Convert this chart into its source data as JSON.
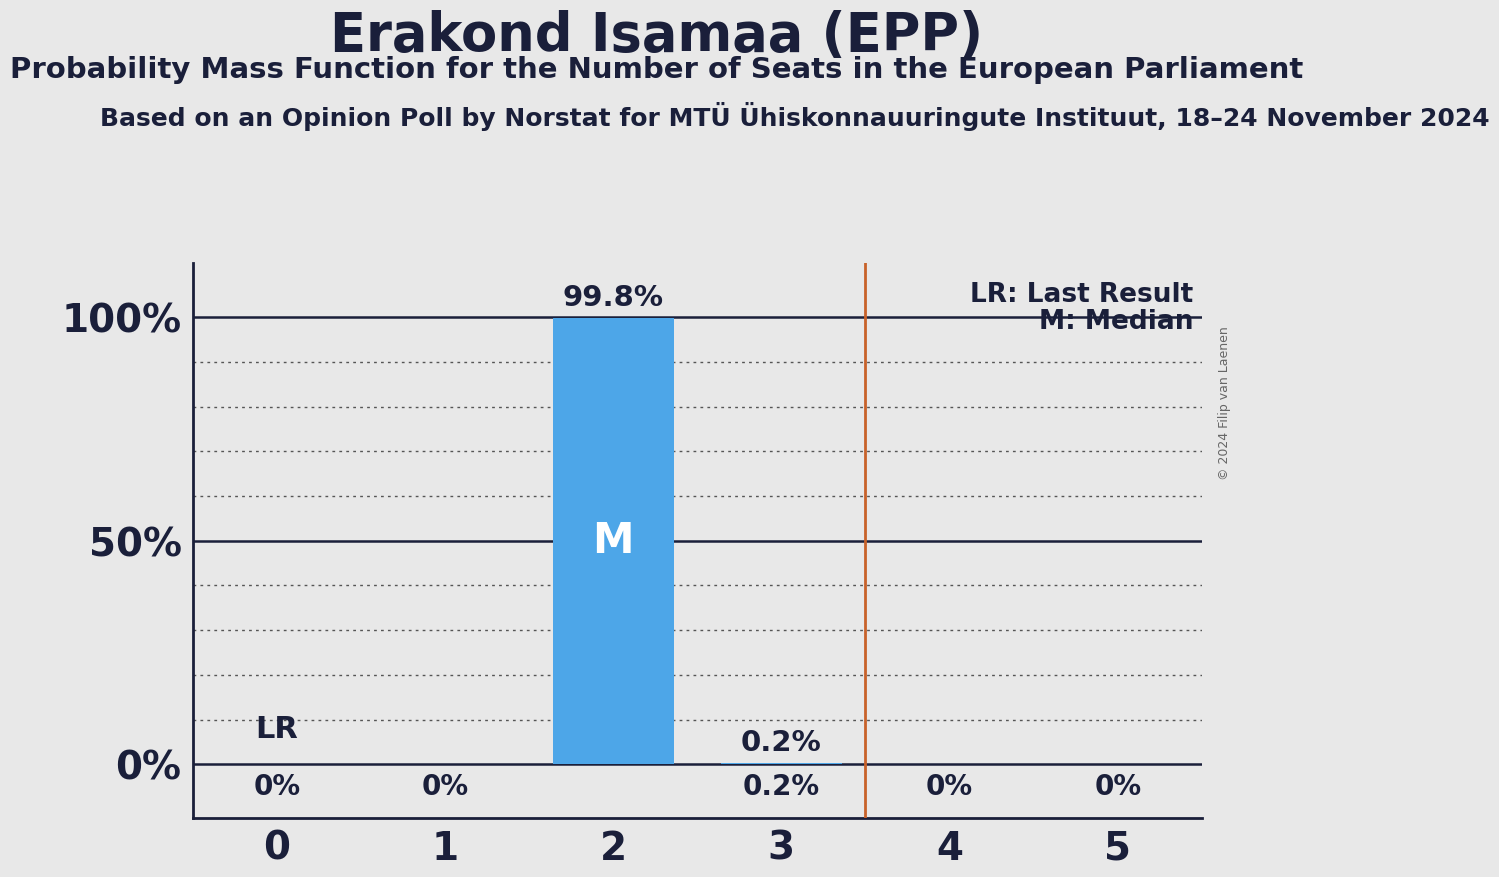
{
  "title": "Erakond Isamaa (EPP)",
  "subtitle": "Probability Mass Function for the Number of Seats in the European Parliament",
  "source_line": "Based on an Opinion Poll by Norstat for MTÜ Ühiskonnauuringute Instituut, 18–24 November 2024",
  "copyright": "© 2024 Filip van Laenen",
  "categories": [
    0,
    1,
    2,
    3,
    4,
    5
  ],
  "probabilities": [
    0.0,
    0.0,
    99.8,
    0.2,
    0.0,
    0.0
  ],
  "bar_color": "#4da6e8",
  "median": 2,
  "last_result": 3.5,
  "background_color": "#e8e8e8",
  "title_fontsize": 38,
  "subtitle_fontsize": 21,
  "source_fontsize": 18,
  "ylabel_ticks": [
    0,
    10,
    20,
    30,
    40,
    50,
    60,
    70,
    80,
    90,
    100
  ],
  "ytick_labels_show": [
    0,
    50,
    100
  ],
  "legend_lr": "LR: Last Result",
  "legend_m": "M: Median",
  "dark_color": "#1a1f3a"
}
